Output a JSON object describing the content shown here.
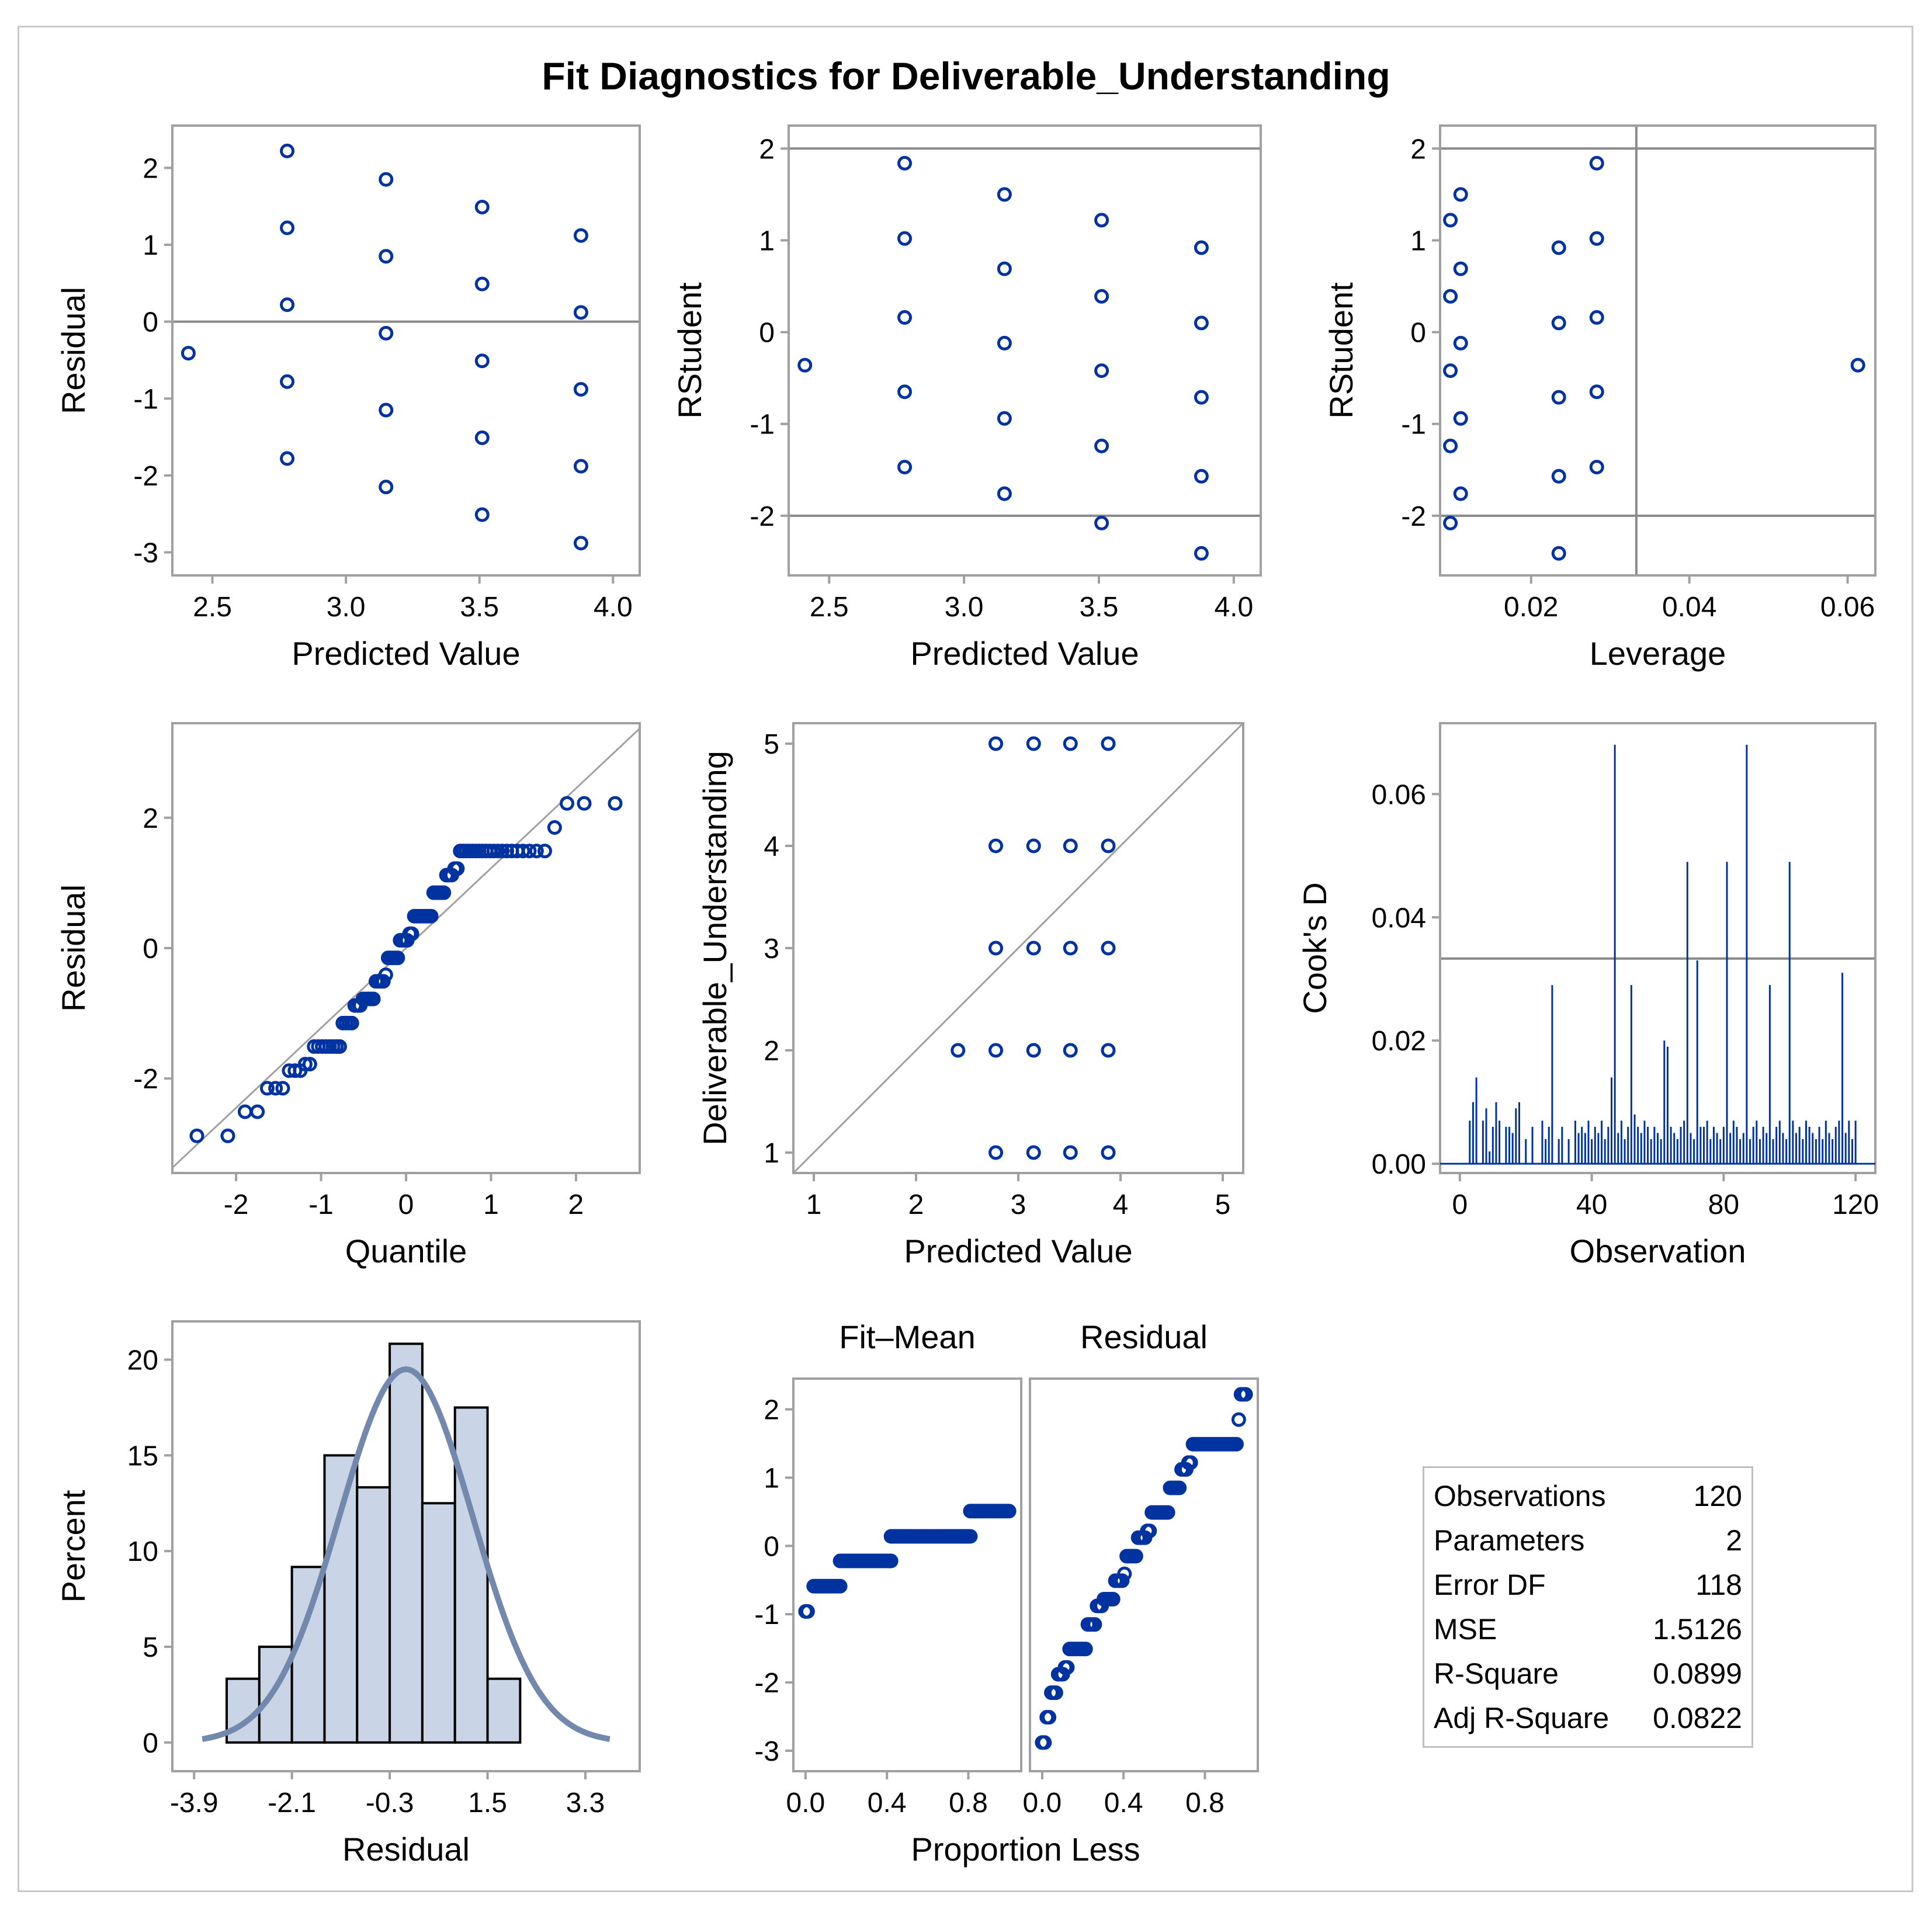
{
  "title": "Fit Diagnostics for Deliverable_Understanding",
  "colors": {
    "marker": "#0033a0",
    "hist_fill": "#c9d5e6",
    "curve": "#7388ad",
    "frame": "#a0a0a0"
  },
  "chart_data": [
    {
      "id": "resid_vs_pred",
      "type": "scatter",
      "xlabel": "Predicted Value",
      "ylabel": "Residual",
      "xlim": [
        2.35,
        4.1
      ],
      "ylim": [
        -3.3,
        2.55
      ],
      "xticks": [
        "2.5",
        "3.0",
        "3.5",
        "4.0"
      ],
      "yticks": [
        "-3",
        "-2",
        "-1",
        "0",
        "1",
        "2"
      ],
      "refline_y": [
        0
      ],
      "points": [
        [
          2.41,
          -0.41
        ],
        [
          2.78,
          2.22
        ],
        [
          2.78,
          1.22
        ],
        [
          2.78,
          0.22
        ],
        [
          2.78,
          -0.78
        ],
        [
          2.78,
          -1.78
        ],
        [
          3.15,
          1.85
        ],
        [
          3.15,
          0.85
        ],
        [
          3.15,
          -0.15
        ],
        [
          3.15,
          -1.15
        ],
        [
          3.15,
          -2.15
        ],
        [
          3.51,
          1.49
        ],
        [
          3.51,
          0.49
        ],
        [
          3.51,
          -0.51
        ],
        [
          3.51,
          -1.51
        ],
        [
          3.51,
          -2.51
        ],
        [
          3.88,
          1.12
        ],
        [
          3.88,
          0.12
        ],
        [
          3.88,
          -0.88
        ],
        [
          3.88,
          -1.88
        ],
        [
          3.88,
          -2.88
        ]
      ]
    },
    {
      "id": "rstudent_vs_pred",
      "type": "scatter",
      "xlabel": "Predicted Value",
      "ylabel": "RStudent",
      "xlim": [
        2.35,
        4.1
      ],
      "ylim": [
        -2.65,
        2.25
      ],
      "xticks": [
        "2.5",
        "3.0",
        "3.5",
        "4.0"
      ],
      "yticks": [
        "-2",
        "-1",
        "0",
        "1",
        "2"
      ],
      "refline_y": [
        -2,
        2
      ],
      "points": [
        [
          2.41,
          -0.36
        ],
        [
          2.78,
          1.84
        ],
        [
          2.78,
          1.02
        ],
        [
          2.78,
          0.16
        ],
        [
          2.78,
          -0.65
        ],
        [
          2.78,
          -1.47
        ],
        [
          3.15,
          1.5
        ],
        [
          3.15,
          0.69
        ],
        [
          3.15,
          -0.12
        ],
        [
          3.15,
          -0.94
        ],
        [
          3.15,
          -1.76
        ],
        [
          3.51,
          1.22
        ],
        [
          3.51,
          0.39
        ],
        [
          3.51,
          -0.42
        ],
        [
          3.51,
          -1.24
        ],
        [
          3.51,
          -2.08
        ],
        [
          3.88,
          0.92
        ],
        [
          3.88,
          0.1
        ],
        [
          3.88,
          -0.71
        ],
        [
          3.88,
          -1.57
        ],
        [
          3.88,
          -2.41
        ]
      ]
    },
    {
      "id": "rstudent_vs_leverage",
      "type": "scatter",
      "xlabel": "Leverage",
      "ylabel": "RStudent",
      "xlim": [
        0.0085,
        0.0635
      ],
      "ylim": [
        -2.65,
        2.25
      ],
      "xticks": [
        "0.02",
        "0.04",
        "0.06"
      ],
      "yticks": [
        "-2",
        "-1",
        "0",
        "1",
        "2"
      ],
      "refline_y": [
        -2,
        2
      ],
      "refline_x": [
        0.0333
      ],
      "points": [
        [
          0.0613,
          -0.36
        ],
        [
          0.0283,
          1.84
        ],
        [
          0.0283,
          1.02
        ],
        [
          0.0283,
          0.16
        ],
        [
          0.0283,
          -0.65
        ],
        [
          0.0283,
          -1.47
        ],
        [
          0.0111,
          1.5
        ],
        [
          0.0111,
          0.69
        ],
        [
          0.0111,
          -0.12
        ],
        [
          0.0111,
          -0.94
        ],
        [
          0.0111,
          -1.76
        ],
        [
          0.0098,
          1.22
        ],
        [
          0.0098,
          0.39
        ],
        [
          0.0098,
          -0.42
        ],
        [
          0.0098,
          -1.24
        ],
        [
          0.0098,
          -2.08
        ],
        [
          0.0235,
          0.92
        ],
        [
          0.0235,
          0.1
        ],
        [
          0.0235,
          -0.71
        ],
        [
          0.0235,
          -1.57
        ],
        [
          0.0235,
          -2.41
        ]
      ]
    },
    {
      "id": "qq_plot",
      "type": "scatter",
      "xlabel": "Quantile",
      "ylabel": "Residual",
      "xlim": [
        -2.75,
        2.75
      ],
      "ylim": [
        -3.45,
        3.45
      ],
      "xticks": [
        "-2",
        "-1",
        "0",
        "1",
        "2"
      ],
      "yticks": [
        "-2",
        "0",
        "2"
      ],
      "diagonal": true,
      "values": [
        -2.88,
        -2.88,
        -2.51,
        -2.51,
        -2.15,
        -2.15,
        -2.15,
        -1.88,
        -1.88,
        -1.88,
        -1.78,
        -1.78,
        -1.51,
        -1.51,
        -1.51,
        -1.51,
        -1.51,
        -1.51,
        -1.51,
        -1.51,
        -1.15,
        -1.15,
        -1.15,
        -1.15,
        -0.88,
        -0.88,
        -0.88,
        -0.78,
        -0.78,
        -0.78,
        -0.78,
        -0.78,
        -0.51,
        -0.51,
        -0.51,
        -0.51,
        -0.41,
        -0.15,
        -0.15,
        -0.15,
        -0.15,
        -0.15,
        0.12,
        0.12,
        0.12,
        0.12,
        0.22,
        0.22,
        0.49,
        0.49,
        0.49,
        0.49,
        0.49,
        0.49,
        0.49,
        0.49,
        0.85,
        0.85,
        0.85,
        0.85,
        0.85,
        1.12,
        1.12,
        1.12,
        1.22,
        1.22,
        1.49,
        1.49,
        1.49,
        1.49,
        1.49,
        1.49,
        1.49,
        1.49,
        1.49,
        1.49,
        1.49,
        1.49,
        1.49,
        1.49,
        1.49,
        1.49,
        1.49,
        1.49,
        1.49,
        1.49,
        1.85,
        2.22,
        2.22,
        2.22
      ]
    },
    {
      "id": "observed_vs_pred",
      "type": "scatter",
      "xlabel": "Predicted Value",
      "ylabel": "Deliverable_Understanding",
      "xlim": [
        0.8,
        5.2
      ],
      "ylim": [
        0.8,
        5.2
      ],
      "xticks": [
        "1",
        "2",
        "3",
        "4",
        "5"
      ],
      "yticks": [
        "1",
        "2",
        "3",
        "4",
        "5"
      ],
      "diagonal": true,
      "points": [
        [
          2.41,
          2
        ],
        [
          2.78,
          5
        ],
        [
          2.78,
          4
        ],
        [
          2.78,
          3
        ],
        [
          2.78,
          2
        ],
        [
          2.78,
          1
        ],
        [
          3.15,
          5
        ],
        [
          3.15,
          4
        ],
        [
          3.15,
          3
        ],
        [
          3.15,
          2
        ],
        [
          3.15,
          1
        ],
        [
          3.51,
          5
        ],
        [
          3.51,
          4
        ],
        [
          3.51,
          3
        ],
        [
          3.51,
          2
        ],
        [
          3.51,
          1
        ],
        [
          3.88,
          5
        ],
        [
          3.88,
          4
        ],
        [
          3.88,
          3
        ],
        [
          3.88,
          2
        ],
        [
          3.88,
          1
        ]
      ]
    },
    {
      "id": "cooks_d",
      "type": "needle",
      "xlabel": "Observation",
      "ylabel": "Cook's D",
      "xlim": [
        -6,
        126
      ],
      "ylim": [
        -0.0015,
        0.0715
      ],
      "xticks": [
        "0",
        "40",
        "80",
        "120"
      ],
      "yticks": [
        "0.00",
        "0.02",
        "0.04",
        "0.06"
      ],
      "refline_y": [
        0.0333
      ],
      "needles": [
        [
          3,
          0.007
        ],
        [
          4,
          0.01
        ],
        [
          5,
          0.014
        ],
        [
          7,
          0.007
        ],
        [
          8,
          0.009
        ],
        [
          9,
          0.002
        ],
        [
          10,
          0.006
        ],
        [
          11,
          0.01
        ],
        [
          12,
          0.007
        ],
        [
          14,
          0.006
        ],
        [
          15,
          0.006
        ],
        [
          16,
          0.005
        ],
        [
          17,
          0.009
        ],
        [
          18,
          0.01
        ],
        [
          20,
          0.004
        ],
        [
          22,
          0.006
        ],
        [
          25,
          0.007
        ],
        [
          26,
          0.004
        ],
        [
          27,
          0.006
        ],
        [
          28,
          0.029
        ],
        [
          30,
          0.004
        ],
        [
          31,
          0.006
        ],
        [
          33,
          0.004
        ],
        [
          35,
          0.007
        ],
        [
          36,
          0.005
        ],
        [
          37,
          0.006
        ],
        [
          38,
          0.005
        ],
        [
          39,
          0.007
        ],
        [
          40,
          0.004
        ],
        [
          41,
          0.006
        ],
        [
          42,
          0.005
        ],
        [
          43,
          0.007
        ],
        [
          44,
          0.004
        ],
        [
          45,
          0.006
        ],
        [
          46,
          0.014
        ],
        [
          47,
          0.068
        ],
        [
          48,
          0.005
        ],
        [
          49,
          0.007
        ],
        [
          50,
          0.004
        ],
        [
          51,
          0.006
        ],
        [
          52,
          0.029
        ],
        [
          53,
          0.008
        ],
        [
          54,
          0.006
        ],
        [
          55,
          0.005
        ],
        [
          56,
          0.007
        ],
        [
          57,
          0.006
        ],
        [
          58,
          0.004
        ],
        [
          59,
          0.006
        ],
        [
          60,
          0.005
        ],
        [
          61,
          0.004
        ],
        [
          62,
          0.02
        ],
        [
          63,
          0.019
        ],
        [
          64,
          0.006
        ],
        [
          65,
          0.005
        ],
        [
          66,
          0.004
        ],
        [
          67,
          0.006
        ],
        [
          68,
          0.007
        ],
        [
          69,
          0.049
        ],
        [
          70,
          0.005
        ],
        [
          71,
          0.004
        ],
        [
          72,
          0.033
        ],
        [
          73,
          0.006
        ],
        [
          74,
          0.006
        ],
        [
          75,
          0.007
        ],
        [
          76,
          0.004
        ],
        [
          77,
          0.006
        ],
        [
          78,
          0.005
        ],
        [
          79,
          0.004
        ],
        [
          80,
          0.006
        ],
        [
          81,
          0.049
        ],
        [
          82,
          0.005
        ],
        [
          83,
          0.007
        ],
        [
          84,
          0.006
        ],
        [
          85,
          0.004
        ],
        [
          86,
          0.005
        ],
        [
          87,
          0.068
        ],
        [
          88,
          0.004
        ],
        [
          89,
          0.006
        ],
        [
          90,
          0.007
        ],
        [
          91,
          0.004
        ],
        [
          92,
          0.006
        ],
        [
          93,
          0.005
        ],
        [
          94,
          0.029
        ],
        [
          95,
          0.004
        ],
        [
          96,
          0.006
        ],
        [
          97,
          0.007
        ],
        [
          98,
          0.005
        ],
        [
          99,
          0.004
        ],
        [
          100,
          0.049
        ],
        [
          101,
          0.007
        ],
        [
          102,
          0.005
        ],
        [
          103,
          0.006
        ],
        [
          104,
          0.004
        ],
        [
          105,
          0.007
        ],
        [
          106,
          0.006
        ],
        [
          107,
          0.005
        ],
        [
          108,
          0.004
        ],
        [
          109,
          0.006
        ],
        [
          110,
          0.004
        ],
        [
          111,
          0.007
        ],
        [
          112,
          0.005
        ],
        [
          113,
          0.004
        ],
        [
          114,
          0.006
        ],
        [
          115,
          0.007
        ],
        [
          116,
          0.031
        ],
        [
          117,
          0.005
        ],
        [
          118,
          0.007
        ],
        [
          119,
          0.004
        ],
        [
          120,
          0.007
        ]
      ]
    },
    {
      "id": "resid_histogram",
      "type": "bar",
      "xlabel": "Residual",
      "ylabel": "Percent",
      "xlim": [
        -4.3,
        4.3
      ],
      "ylim": [
        -1.5,
        22
      ],
      "xticks": [
        "-3.9",
        "-2.1",
        "-0.3",
        "1.5",
        "3.3"
      ],
      "yticks": [
        "0",
        "5",
        "10",
        "15",
        "20"
      ],
      "bin_edges": [
        -3.3,
        -2.7,
        -2.1,
        -1.5,
        -0.9,
        -0.3,
        0.3,
        0.9,
        1.5,
        2.1,
        2.7
      ],
      "values": [
        3.33,
        5.0,
        9.17,
        15.0,
        13.33,
        20.83,
        12.5,
        17.5,
        3.33,
        0
      ],
      "normal_curve": {
        "mean": 0,
        "sd": 1.225,
        "peak_percent": 19.5
      }
    },
    {
      "id": "rf_spread",
      "type": "scatter",
      "xlabel": "Proportion Less",
      "ylabel": "",
      "panels": [
        "Fit–Mean",
        "Residual"
      ],
      "xlim": [
        -0.06,
        1.06
      ],
      "ylim": [
        -3.3,
        2.45
      ],
      "xticks": [
        "0.0",
        "0.4",
        "0.8"
      ],
      "yticks": [
        "-3",
        "-2",
        "-1",
        "0",
        "1",
        "2"
      ],
      "fit_minus_mean": [
        {
          "value": -0.96,
          "from": 0.0,
          "to": 0.01
        },
        {
          "value": -0.59,
          "from": 0.04,
          "to": 0.17
        },
        {
          "value": -0.22,
          "from": 0.17,
          "to": 0.42
        },
        {
          "value": 0.14,
          "from": 0.42,
          "to": 0.81
        },
        {
          "value": 0.51,
          "from": 0.81,
          "to": 1.0
        }
      ]
    }
  ],
  "stats_table": [
    {
      "label": "Observations",
      "value": "120"
    },
    {
      "label": "Parameters",
      "value": "2"
    },
    {
      "label": "Error DF",
      "value": "118"
    },
    {
      "label": "MSE",
      "value": "1.5126"
    },
    {
      "label": "R-Square",
      "value": "0.0899"
    },
    {
      "label": "Adj R-Square",
      "value": "0.0822"
    }
  ]
}
